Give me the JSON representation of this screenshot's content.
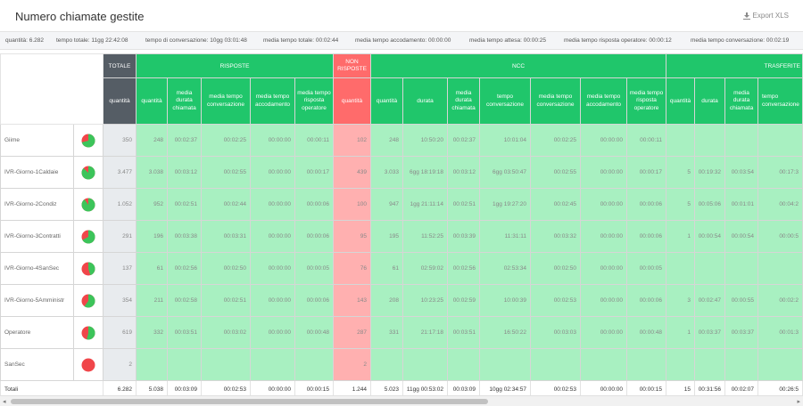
{
  "header": {
    "title": "Numero chiamate gestite",
    "export_label": "Export XLS"
  },
  "stats": [
    "quantità: 6.282",
    "tempo totale: 11gg 22:42:08",
    "tempo di conversazione: 10gg 03:01:48",
    "media tempo totale: 00:02:44",
    "media tempo accodamento: 00:00:00",
    "media tempo attesa: 00:00:25",
    "media tempo risposta operatore: 00:00:12",
    "media tempo conversazione: 00:02:19"
  ],
  "groups": {
    "totale": "TOTALE",
    "risposte": "RISPOSTE",
    "non_risposte": "NON RISPOSTE",
    "ncc": "NCC",
    "trasferite": "TRASFERITE"
  },
  "subheaders": {
    "quantita": "quantità",
    "media_durata_chiamata": "media durata chiamata",
    "media_tempo_conversazione": "media tempo conversazione",
    "media_tempo_accodamento": "media tempo accodamento",
    "media_tempo_risposta_operatore": "media tempo risposta operatore",
    "durata": "durata",
    "tempo_conversazione": "tempo conversazione"
  },
  "colors": {
    "green_header": "#20c66b",
    "red_header": "#ff6b6b",
    "dark_header": "#555d65",
    "green_cell": "#a8f0c1",
    "red_cell": "#ffb0b0",
    "pie_green": "#3cc45a",
    "pie_red": "#f0464a"
  },
  "rows": [
    {
      "name": "Giime",
      "answered_pct": 0.71,
      "totale": "350",
      "risposte": [
        "248",
        "00:02:37",
        "00:02:25",
        "00:00:00",
        "00:00:11"
      ],
      "non_risposte": "102",
      "ncc": [
        "248",
        "10:50:20",
        "00:02:37",
        "10:01:04",
        "00:02:25",
        "00:00:00",
        "00:00:11"
      ],
      "trasferite": [
        "",
        "",
        "",
        ""
      ]
    },
    {
      "name": "IVR-Giorno-1Caldaie",
      "answered_pct": 0.87,
      "totale": "3.477",
      "risposte": [
        "3.038",
        "00:03:12",
        "00:02:55",
        "00:00:00",
        "00:00:17"
      ],
      "non_risposte": "439",
      "ncc": [
        "3.033",
        "6gg 18:19:18",
        "00:03:12",
        "6gg 03:50:47",
        "00:02:55",
        "00:00:00",
        "00:00:17"
      ],
      "trasferite": [
        "5",
        "00:19:32",
        "00:03:54",
        "00:17:3"
      ]
    },
    {
      "name": "IVR-Giorno-2Condiz",
      "answered_pct": 0.9,
      "totale": "1.052",
      "risposte": [
        "952",
        "00:02:51",
        "00:02:44",
        "00:00:00",
        "00:00:06"
      ],
      "non_risposte": "100",
      "ncc": [
        "947",
        "1gg 21:11:14",
        "00:02:51",
        "1gg 19:27:20",
        "00:02:45",
        "00:00:00",
        "00:00:06"
      ],
      "trasferite": [
        "5",
        "00:05:06",
        "00:01:01",
        "00:04:2"
      ]
    },
    {
      "name": "IVR-Giorno-3Contratti",
      "answered_pct": 0.67,
      "totale": "291",
      "risposte": [
        "196",
        "00:03:38",
        "00:03:31",
        "00:00:00",
        "00:00:06"
      ],
      "non_risposte": "95",
      "ncc": [
        "195",
        "11:52:25",
        "00:03:39",
        "11:31:11",
        "00:03:32",
        "00:00:00",
        "00:00:06"
      ],
      "trasferite": [
        "1",
        "00:00:54",
        "00:00:54",
        "00:00:5"
      ]
    },
    {
      "name": "IVR-Giorno-4SanSec",
      "answered_pct": 0.45,
      "totale": "137",
      "risposte": [
        "61",
        "00:02:56",
        "00:02:50",
        "00:00:00",
        "00:00:05"
      ],
      "non_risposte": "76",
      "ncc": [
        "61",
        "02:59:02",
        "00:02:56",
        "02:53:34",
        "00:02:50",
        "00:00:00",
        "00:00:05"
      ],
      "trasferite": [
        "",
        "",
        "",
        ""
      ]
    },
    {
      "name": "IVR-Giorno-5Amministr",
      "answered_pct": 0.6,
      "totale": "354",
      "risposte": [
        "211",
        "00:02:58",
        "00:02:51",
        "00:00:00",
        "00:00:06"
      ],
      "non_risposte": "143",
      "ncc": [
        "208",
        "10:23:25",
        "00:02:59",
        "10:00:39",
        "00:02:53",
        "00:00:00",
        "00:00:06"
      ],
      "trasferite": [
        "3",
        "00:02:47",
        "00:00:55",
        "00:02:2"
      ]
    },
    {
      "name": "Operatore",
      "answered_pct": 0.54,
      "totale": "619",
      "risposte": [
        "332",
        "00:03:51",
        "00:03:02",
        "00:00:00",
        "00:00:48"
      ],
      "non_risposte": "287",
      "ncc": [
        "331",
        "21:17:18",
        "00:03:51",
        "16:50:22",
        "00:03:03",
        "00:00:00",
        "00:00:48"
      ],
      "trasferite": [
        "1",
        "00:03:37",
        "00:03:37",
        "00:01:3"
      ]
    },
    {
      "name": "SanSec",
      "answered_pct": 0,
      "totale": "2",
      "risposte": [
        "",
        "",
        "",
        "",
        ""
      ],
      "non_risposte": "2",
      "ncc": [
        "",
        "",
        "",
        "",
        "",
        "",
        ""
      ],
      "trasferite": [
        "",
        "",
        "",
        ""
      ]
    }
  ],
  "totals": {
    "label": "Totali",
    "totale": "6.282",
    "risposte": [
      "5.038",
      "00:03:09",
      "00:02:53",
      "00:00:00",
      "00:00:15"
    ],
    "non_risposte": "1.244",
    "ncc": [
      "5.023",
      "11gg 00:53:02",
      "00:03:09",
      "10gg 02:34:57",
      "00:02:53",
      "00:00:00",
      "00:00:15"
    ],
    "trasferite": [
      "15",
      "00:31:56",
      "00:02:07",
      "00:26:5"
    ]
  }
}
